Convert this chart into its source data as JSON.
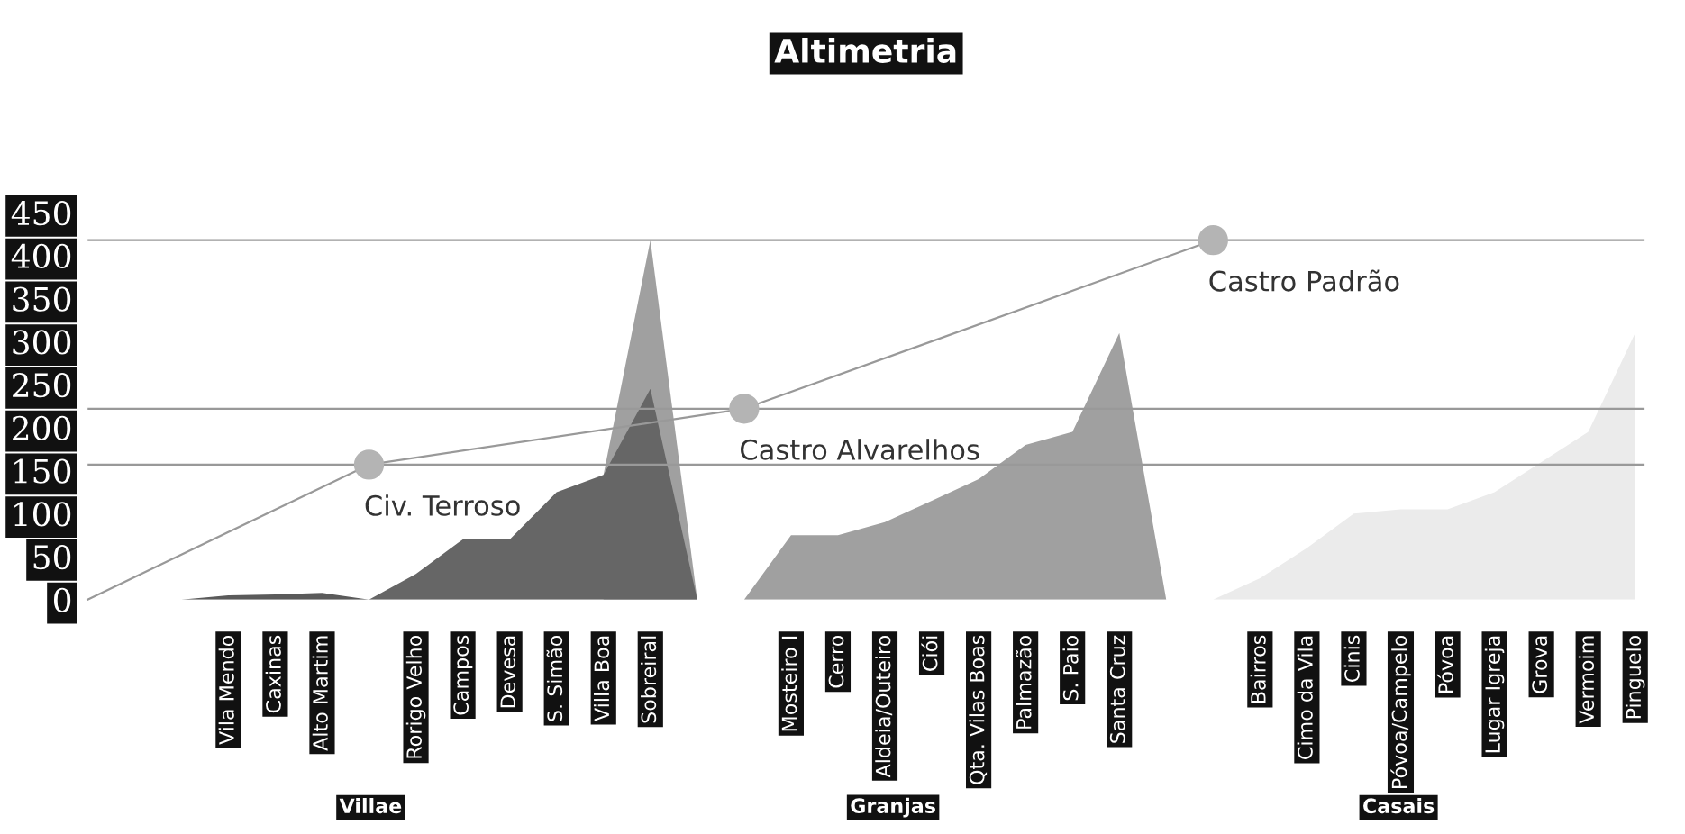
{
  "chart_data": {
    "type": "area",
    "title": "Altimetria",
    "categories": [
      null,
      null,
      null,
      "Vila Mendo",
      "Caxinas",
      "Alto Martim",
      null,
      "Rorigo Velho",
      "Campos",
      "Devesa",
      "S. Simão",
      "Villa Boa",
      "Sobreiral",
      null,
      null,
      "Mosteiro I",
      "Cerro",
      "Aldeia/Outeiro",
      "Ciói",
      "Qta. Vilas Boas",
      "Palmazão",
      "S. Paio",
      "Santa Cruz",
      null,
      null,
      "Bairros",
      "Cimo da Vila",
      "Cinis",
      "Póvoa/Campelo",
      "Póvoa",
      "Lugar Igreja",
      "Grova",
      "Vermoim",
      "Pinguelo"
    ],
    "series": [
      {
        "color": "#a0a0a0",
        "values": [
          null,
          null,
          null,
          null,
          null,
          null,
          null,
          null,
          null,
          null,
          null,
          145,
          418,
          0,
          null,
          null,
          null,
          null,
          null,
          null,
          null,
          null,
          null,
          null,
          null,
          null,
          null,
          null,
          null,
          null,
          null,
          null,
          null,
          null
        ]
      },
      {
        "color": "#5a5a5a",
        "values": [
          null,
          null,
          0,
          5,
          6,
          8,
          0,
          null,
          null,
          null,
          null,
          null,
          null,
          null,
          null,
          null,
          null,
          null,
          null,
          null,
          null,
          null,
          null,
          null,
          null,
          null,
          null,
          null,
          null,
          null,
          null,
          null,
          null,
          null
        ]
      },
      {
        "color": "#666666",
        "values": [
          null,
          null,
          null,
          null,
          null,
          null,
          0,
          30,
          70,
          70,
          125,
          145,
          245,
          0,
          null,
          null,
          null,
          null,
          null,
          null,
          null,
          null,
          null,
          null,
          null,
          null,
          null,
          null,
          null,
          null,
          null,
          null,
          null,
          null
        ]
      },
      {
        "color": "#a0a0a0",
        "values": [
          null,
          null,
          null,
          null,
          null,
          null,
          null,
          null,
          null,
          null,
          null,
          null,
          null,
          null,
          0,
          75,
          75,
          90,
          115,
          140,
          180,
          195,
          310,
          0,
          null,
          null,
          null,
          null,
          null,
          null,
          null,
          null,
          null,
          null
        ]
      },
      {
        "color": "#ebebeb",
        "values": [
          null,
          null,
          null,
          null,
          null,
          null,
          null,
          null,
          null,
          null,
          null,
          null,
          null,
          null,
          null,
          null,
          null,
          null,
          null,
          null,
          null,
          null,
          null,
          null,
          0,
          25,
          60,
          100,
          105,
          105,
          125,
          160,
          195,
          310
        ]
      },
      {
        "type": "line",
        "color": "#999999",
        "marker": "circle",
        "values": [
          0,
          null,
          null,
          null,
          null,
          null,
          157,
          null,
          null,
          null,
          null,
          null,
          null,
          null,
          222,
          null,
          null,
          null,
          null,
          null,
          null,
          null,
          null,
          null,
          418,
          null,
          null,
          null,
          null,
          null,
          null,
          null,
          null,
          null
        ],
        "value_labels": [
          null,
          null,
          null,
          null,
          null,
          null,
          "Civ. Terroso",
          null,
          null,
          null,
          null,
          null,
          null,
          null,
          "Castro Alvarelhos",
          null,
          null,
          null,
          null,
          null,
          null,
          null,
          null,
          null,
          "Castro Padrão",
          null,
          null,
          null,
          null,
          null,
          null,
          null,
          null,
          null
        ]
      }
    ],
    "ref_lines": [
      {
        "axis": "y",
        "value": 418,
        "color": "#999999"
      },
      {
        "axis": "y",
        "value": 222,
        "color": "#999999"
      },
      {
        "axis": "y",
        "value": 157,
        "color": "#999999"
      }
    ],
    "annotations": [
      "Villae",
      "Granjas",
      "Casais"
    ],
    "ylim": [
      0,
      450
    ],
    "yticks": [
      0,
      50,
      100,
      150,
      200,
      250,
      300,
      350,
      400,
      450
    ],
    "grid": false
  }
}
